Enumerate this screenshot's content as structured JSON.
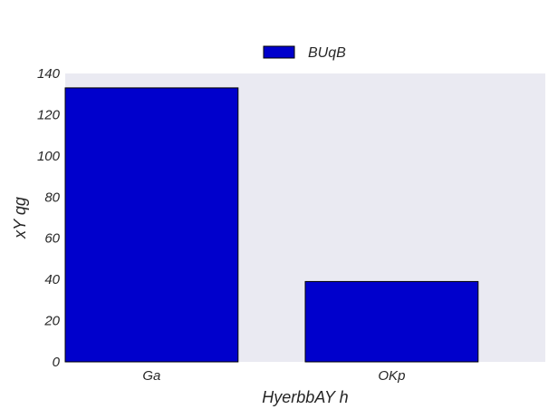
{
  "chart_data": {
    "type": "bar",
    "categories": [
      "Ga",
      "OKp"
    ],
    "series": [
      {
        "name": "BUqB",
        "values": [
          133,
          39
        ],
        "color": "#0000cc"
      }
    ],
    "xlabel": "HyerbbAY h",
    "ylabel": "xY qg",
    "ylim": [
      0,
      140
    ],
    "yticks": [
      0,
      20,
      40,
      60,
      80,
      100,
      120,
      140
    ],
    "ytick_labels": [
      "0",
      "20",
      "40",
      "60",
      "80",
      "100",
      "120",
      "140"
    ],
    "plot_background": "#eaeaf2",
    "grid": false,
    "legend_position": "top-center"
  }
}
